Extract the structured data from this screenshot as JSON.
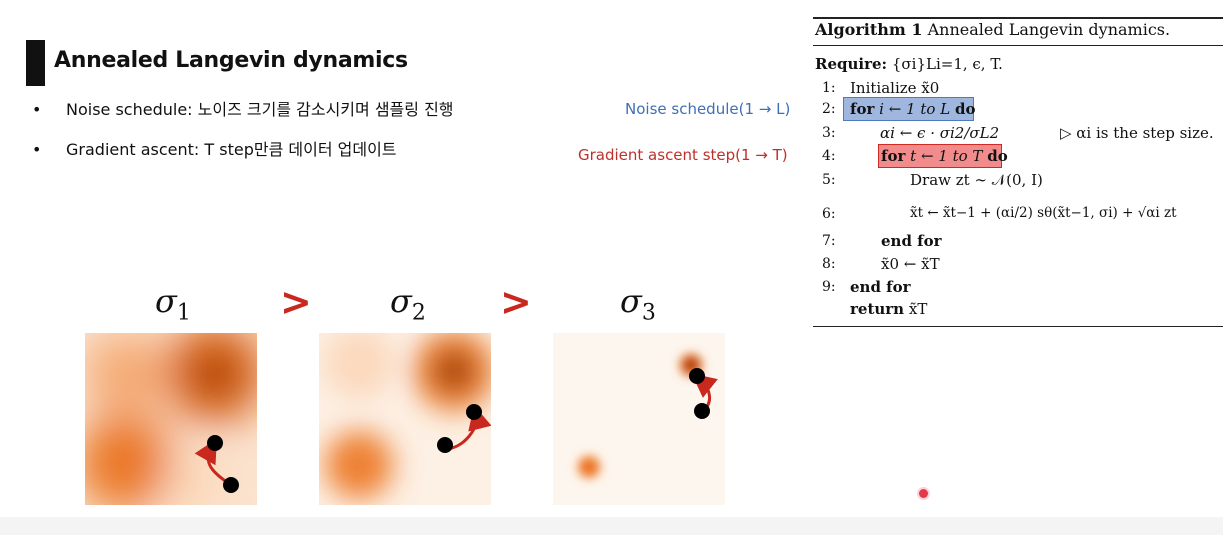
{
  "slide": {
    "title": "Annealed Langevin dynamics",
    "bullets": [
      {
        "marker": "•",
        "text": "Noise schedule: 노이즈 크기를 감소시키며 샘플링 진행"
      },
      {
        "marker": "•",
        "text": "Gradient ascent: T step만큼 데이터 업데이트"
      }
    ]
  },
  "annotations": {
    "noise_schedule": "Noise schedule(1 → L)",
    "gradient_ascent": "Gradient ascent step(1 → T)"
  },
  "algorithm": {
    "title_bold": "Algorithm 1",
    "title_rest": "Annealed Langevin dynamics.",
    "require_label": "Require:",
    "require_text": "{σi}Li=1, ϵ, T.",
    "lines": [
      {
        "num": "1:",
        "text": "Initialize x̃0"
      },
      {
        "num": "2:",
        "kw": "for",
        "text": "i ← 1 to L",
        "kw2": "do"
      },
      {
        "num": "3:",
        "text": "αi ← ϵ · σi2/σL2",
        "comment": "▷ αi is the step size."
      },
      {
        "num": "4:",
        "kw": "for",
        "text": "t ← 1 to T",
        "kw2": "do"
      },
      {
        "num": "5:",
        "text": "Draw zt ∼ 𝒩(0, I)"
      },
      {
        "num": "6:",
        "text": "x̃t ← x̃t−1 + (αi/2) sθ(x̃t−1, σi) + √αi zt"
      },
      {
        "num": "7:",
        "kw": "end for"
      },
      {
        "num": "8:",
        "text": "x̃0 ← x̃T"
      },
      {
        "num": "9:",
        "kw": "end for"
      },
      {
        "num": "",
        "kw": "return",
        "text": "x̃T"
      }
    ]
  },
  "figure": {
    "sigmas": [
      {
        "symbol": "σ",
        "sub": "1"
      },
      {
        "symbol": "σ",
        "sub": "2"
      },
      {
        "symbol": "σ",
        "sub": "3"
      }
    ],
    "comparator": ">",
    "colors": {
      "density": "#e8620a",
      "arrow": "#c8281e",
      "point": "#000000",
      "compare": "#c8281e"
    }
  }
}
